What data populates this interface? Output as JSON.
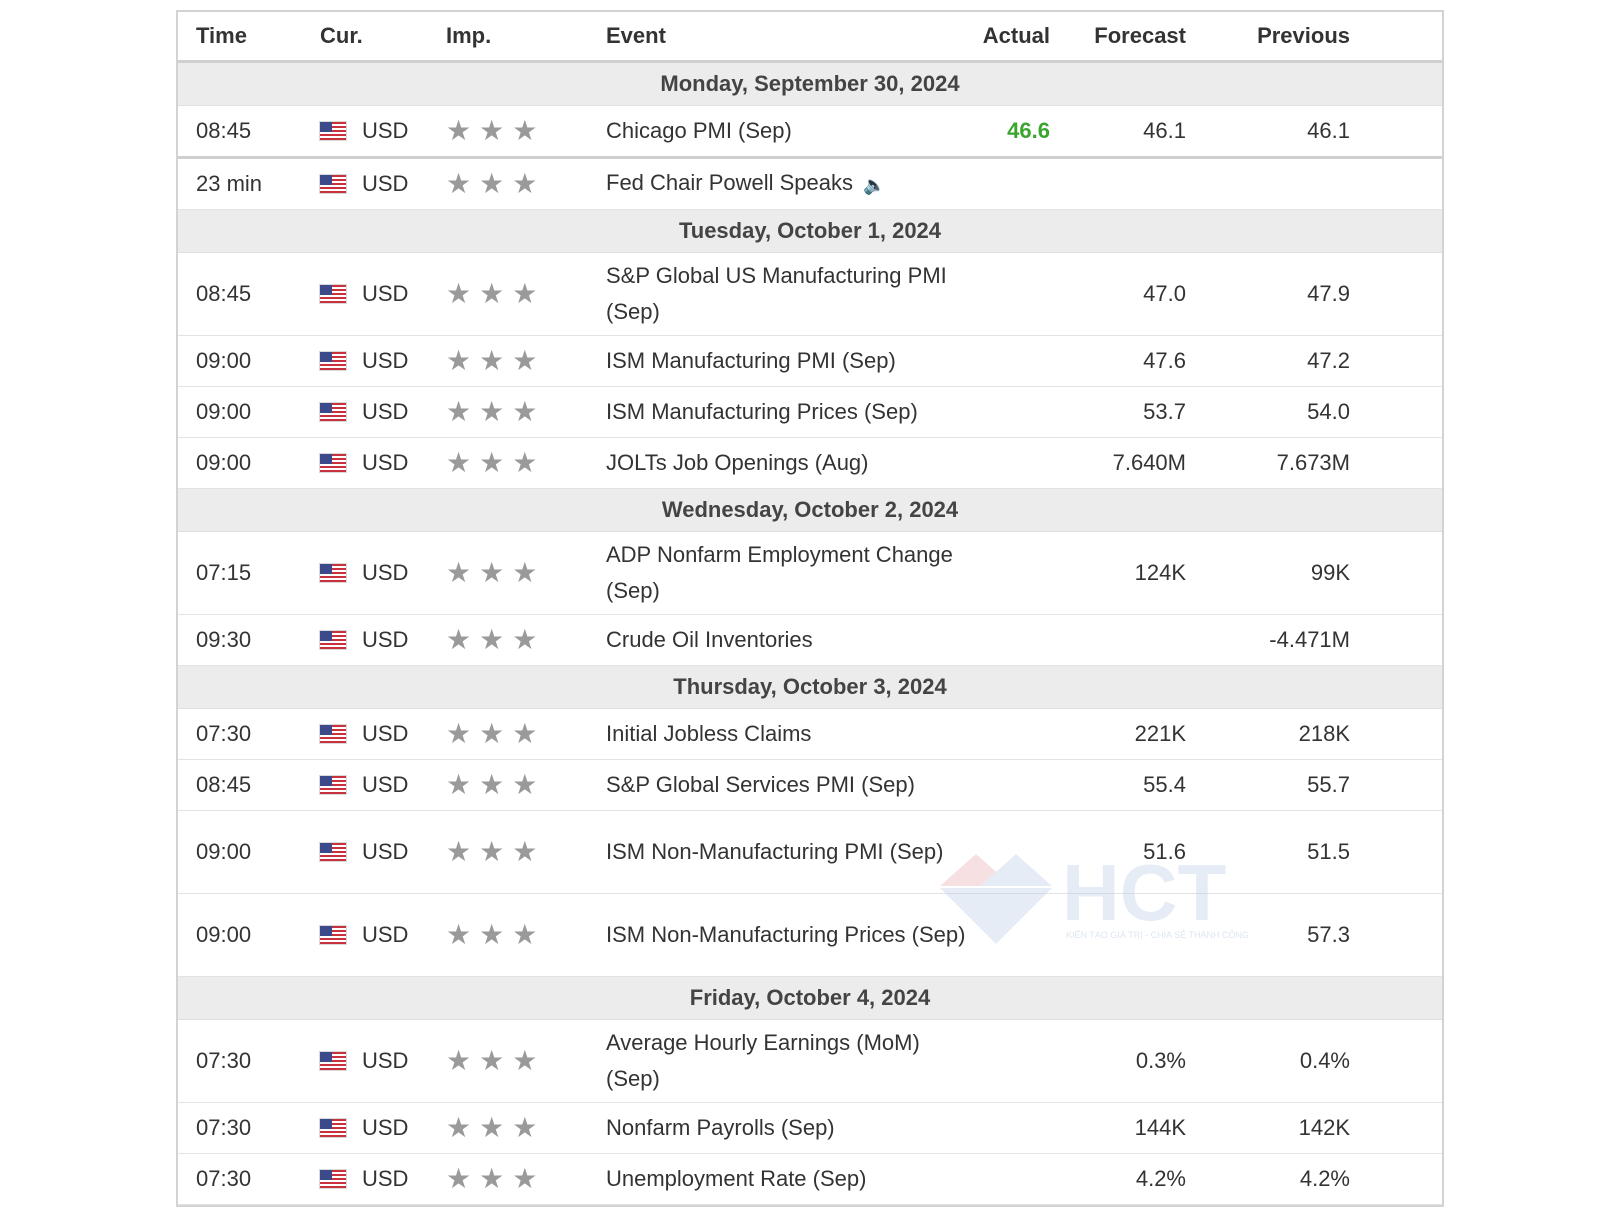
{
  "header": {
    "time": "Time",
    "currency": "Cur.",
    "importance": "Imp.",
    "event": "Event",
    "actual": "Actual",
    "forecast": "Forecast",
    "previous": "Previous"
  },
  "colors": {
    "actual_good": "#3aa52f",
    "day_background": "#ececec",
    "star": "#9a9a9a"
  },
  "days": [
    {
      "date": "Monday, September 30, 2024",
      "events": [
        {
          "time": "08:45",
          "currency": "USD",
          "importance": 3,
          "event": "Chicago PMI (Sep)",
          "actual": "46.6",
          "forecast": "46.1",
          "previous": "46.1"
        },
        {
          "time": "23 min",
          "currency": "USD",
          "importance": 3,
          "event": "Fed Chair Powell Speaks",
          "actual": "",
          "forecast": "",
          "previous": "",
          "speaker": true
        }
      ]
    },
    {
      "date": "Tuesday, October 1, 2024",
      "events": [
        {
          "time": "08:45",
          "currency": "USD",
          "importance": 3,
          "event": "S&P Global US Manufacturing PMI (Sep)",
          "actual": "",
          "forecast": "47.0",
          "previous": "47.9",
          "lines": 2
        },
        {
          "time": "09:00",
          "currency": "USD",
          "importance": 3,
          "event": "ISM Manufacturing PMI (Sep)",
          "actual": "",
          "forecast": "47.6",
          "previous": "47.2"
        },
        {
          "time": "09:00",
          "currency": "USD",
          "importance": 3,
          "event": "ISM Manufacturing Prices (Sep)",
          "actual": "",
          "forecast": "53.7",
          "previous": "54.0"
        },
        {
          "time": "09:00",
          "currency": "USD",
          "importance": 3,
          "event": "JOLTs Job Openings (Aug)",
          "actual": "",
          "forecast": "7.640M",
          "previous": "7.673M"
        }
      ]
    },
    {
      "date": "Wednesday, October 2, 2024",
      "events": [
        {
          "time": "07:15",
          "currency": "USD",
          "importance": 3,
          "event": "ADP Nonfarm Employment Change (Sep)",
          "actual": "",
          "forecast": "124K",
          "previous": "99K",
          "lines": 2
        },
        {
          "time": "09:30",
          "currency": "USD",
          "importance": 3,
          "event": "Crude Oil Inventories",
          "actual": "",
          "forecast": "",
          "previous": "-4.471M"
        }
      ]
    },
    {
      "date": "Thursday, October 3, 2024",
      "events": [
        {
          "time": "07:30",
          "currency": "USD",
          "importance": 3,
          "event": "Initial Jobless Claims",
          "actual": "",
          "forecast": "221K",
          "previous": "218K"
        },
        {
          "time": "08:45",
          "currency": "USD",
          "importance": 3,
          "event": "S&P Global Services PMI (Sep)",
          "actual": "",
          "forecast": "55.4",
          "previous": "55.7"
        },
        {
          "time": "09:00",
          "currency": "USD",
          "importance": 3,
          "event": "ISM Non-Manufacturing PMI (Sep)",
          "actual": "",
          "forecast": "51.6",
          "previous": "51.5",
          "lines": 2
        },
        {
          "time": "09:00",
          "currency": "USD",
          "importance": 3,
          "event": "ISM Non-Manufacturing Prices (Sep)",
          "actual": "",
          "forecast": "",
          "previous": "57.3",
          "lines": 2
        }
      ]
    },
    {
      "date": "Friday, October 4, 2024",
      "events": [
        {
          "time": "07:30",
          "currency": "USD",
          "importance": 3,
          "event": "Average Hourly Earnings (MoM) (Sep)",
          "actual": "",
          "forecast": "0.3%",
          "previous": "0.4%",
          "lines": 2
        },
        {
          "time": "07:30",
          "currency": "USD",
          "importance": 3,
          "event": "Nonfarm Payrolls (Sep)",
          "actual": "",
          "forecast": "144K",
          "previous": "142K"
        },
        {
          "time": "07:30",
          "currency": "USD",
          "importance": 3,
          "event": "Unemployment Rate (Sep)",
          "actual": "",
          "forecast": "4.2%",
          "previous": "4.2%"
        }
      ]
    }
  ],
  "watermark": {
    "brand": "HCT",
    "tagline": "KIẾN TẠO GIÁ TRỊ - CHIA SẺ THÀNH CÔNG"
  }
}
